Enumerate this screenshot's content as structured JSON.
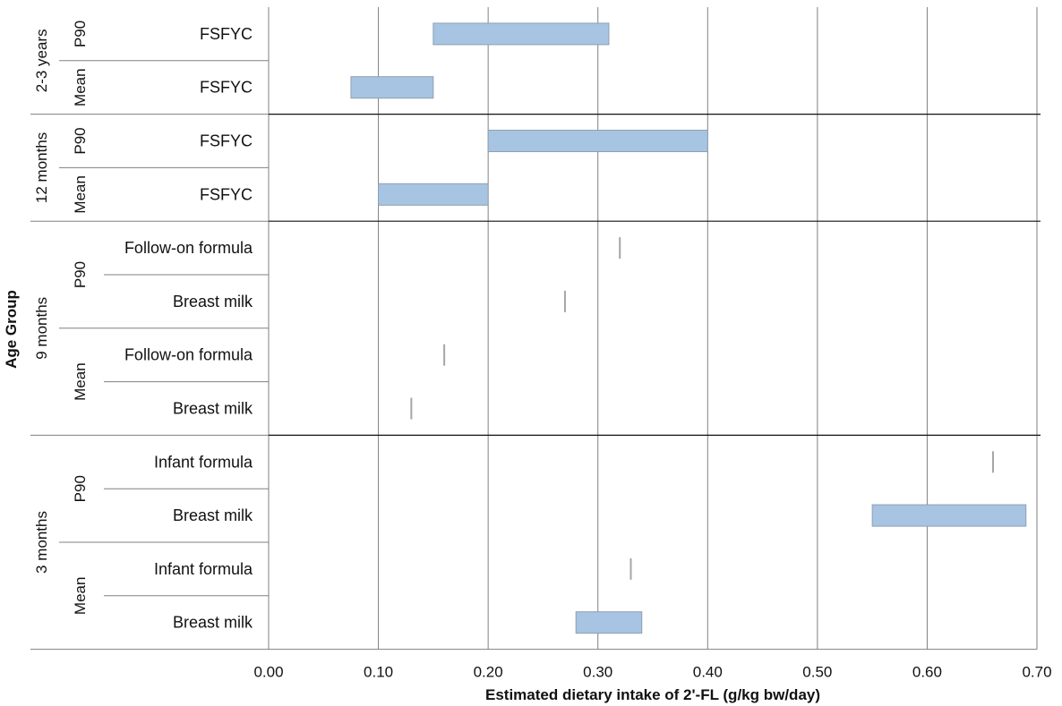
{
  "chart_data": {
    "type": "bar",
    "orientation": "horizontal",
    "subtype": "floating-range",
    "xlabel": "Estimated dietary intake of 2'-FL (g/kg bw/day)",
    "ylabel": "Age Group",
    "xlim": [
      0,
      0.7
    ],
    "x_ticks": [
      "0.00",
      "0.10",
      "0.20",
      "0.30",
      "0.40",
      "0.50",
      "0.60",
      "0.70"
    ],
    "grid": "vertical",
    "bar_color": "#a7c4e2",
    "marker_color": "#a6a6a6",
    "groups": [
      {
        "age": "2-3 years",
        "stats": [
          {
            "stat": "P90",
            "rows": [
              {
                "category": "FSFYC",
                "low": 0.15,
                "high": 0.31
              }
            ]
          },
          {
            "stat": "Mean",
            "rows": [
              {
                "category": "FSFYC",
                "low": 0.075,
                "high": 0.15
              }
            ]
          }
        ]
      },
      {
        "age": "12 months",
        "stats": [
          {
            "stat": "P90",
            "rows": [
              {
                "category": "FSFYC",
                "low": 0.2,
                "high": 0.4
              }
            ]
          },
          {
            "stat": "Mean",
            "rows": [
              {
                "category": "FSFYC",
                "low": 0.1,
                "high": 0.2
              }
            ]
          }
        ]
      },
      {
        "age": "9 months",
        "stats": [
          {
            "stat": "P90",
            "rows": [
              {
                "category": "Follow-on formula",
                "low": 0.32,
                "high": 0.32
              },
              {
                "category": "Breast milk",
                "low": 0.27,
                "high": 0.27
              }
            ]
          },
          {
            "stat": "Mean",
            "rows": [
              {
                "category": "Follow-on formula",
                "low": 0.16,
                "high": 0.16
              },
              {
                "category": "Breast milk",
                "low": 0.13,
                "high": 0.13
              }
            ]
          }
        ]
      },
      {
        "age": "3 months",
        "stats": [
          {
            "stat": "P90",
            "rows": [
              {
                "category": "Infant formula",
                "low": 0.66,
                "high": 0.66
              },
              {
                "category": "Breast milk",
                "low": 0.55,
                "high": 0.69
              }
            ]
          },
          {
            "stat": "Mean",
            "rows": [
              {
                "category": "Infant formula",
                "low": 0.33,
                "high": 0.33
              },
              {
                "category": "Breast milk",
                "low": 0.28,
                "high": 0.34
              }
            ]
          }
        ]
      }
    ]
  }
}
